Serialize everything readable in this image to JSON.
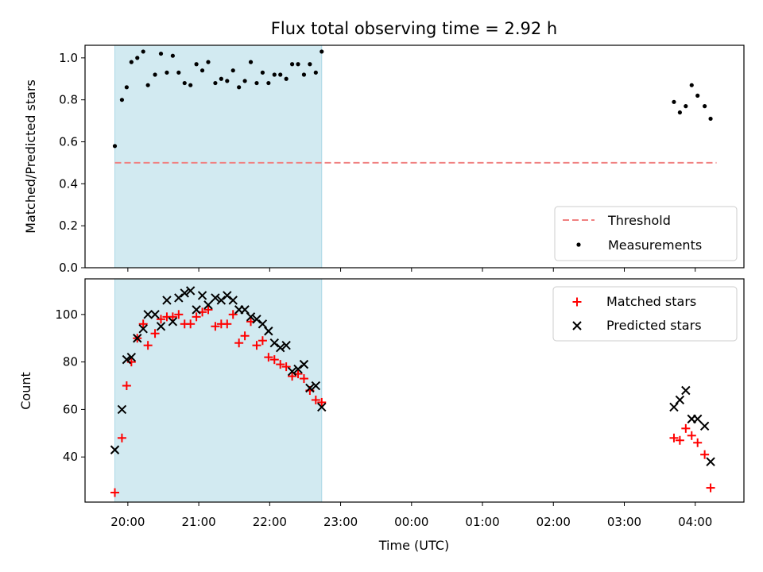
{
  "title": "Flux total observing time = 2.92 h",
  "colors": {
    "shade": "#add8e6",
    "threshold": "#f08080",
    "measurement": "#000000",
    "matched": "#ff0000",
    "predicted": "#000000"
  },
  "xaxis": {
    "label": "Time (UTC)",
    "ticks": [
      "19:00",
      "20:00",
      "21:00",
      "22:00",
      "23:00",
      "00:00",
      "01:00",
      "02:00",
      "03:00",
      "04:00"
    ],
    "tick_labels": [
      "20:00",
      "21:00",
      "22:00",
      "23:00",
      "00:00",
      "01:00",
      "02:00",
      "03:00",
      "04:00"
    ]
  },
  "chart_data": [
    {
      "type": "scatter",
      "ylabel": "Matched/Predicted stars",
      "ylim": [
        0,
        1.06
      ],
      "yticks": [
        0.0,
        0.2,
        0.4,
        0.6,
        0.8,
        1.0
      ],
      "ytick_labels": [
        "0.0",
        "0.2",
        "0.4",
        "0.6",
        "0.8",
        "1.0"
      ],
      "shaded_span": [
        "19:49",
        "22:44"
      ],
      "threshold": {
        "name": "Threshold",
        "value": 0.5,
        "from": "19:49",
        "to": "04:18"
      },
      "legend": {
        "position": "bottom-right",
        "entries": [
          "Threshold",
          "Measurements"
        ]
      },
      "series": [
        {
          "name": "Measurements",
          "points": [
            [
              "19:49",
              0.58
            ],
            [
              "19:55",
              0.8
            ],
            [
              "19:59",
              0.86
            ],
            [
              "20:03",
              0.98
            ],
            [
              "20:08",
              1.0
            ],
            [
              "20:13",
              1.03
            ],
            [
              "20:17",
              0.87
            ],
            [
              "20:23",
              0.92
            ],
            [
              "20:28",
              1.02
            ],
            [
              "20:33",
              0.93
            ],
            [
              "20:38",
              1.01
            ],
            [
              "20:43",
              0.93
            ],
            [
              "20:48",
              0.88
            ],
            [
              "20:53",
              0.87
            ],
            [
              "20:58",
              0.97
            ],
            [
              "21:03",
              0.94
            ],
            [
              "21:08",
              0.98
            ],
            [
              "21:14",
              0.88
            ],
            [
              "21:19",
              0.9
            ],
            [
              "21:24",
              0.89
            ],
            [
              "21:29",
              0.94
            ],
            [
              "21:34",
              0.86
            ],
            [
              "21:39",
              0.89
            ],
            [
              "21:44",
              0.98
            ],
            [
              "21:49",
              0.88
            ],
            [
              "21:54",
              0.93
            ],
            [
              "21:59",
              0.88
            ],
            [
              "22:04",
              0.92
            ],
            [
              "22:09",
              0.92
            ],
            [
              "22:14",
              0.9
            ],
            [
              "22:19",
              0.97
            ],
            [
              "22:24",
              0.97
            ],
            [
              "22:29",
              0.92
            ],
            [
              "22:34",
              0.97
            ],
            [
              "22:39",
              0.93
            ],
            [
              "22:44",
              1.03
            ],
            [
              "03:42",
              0.79
            ],
            [
              "03:47",
              0.74
            ],
            [
              "03:52",
              0.77
            ],
            [
              "03:57",
              0.87
            ],
            [
              "04:02",
              0.82
            ],
            [
              "04:08",
              0.77
            ],
            [
              "04:13",
              0.71
            ]
          ]
        }
      ]
    },
    {
      "type": "scatter",
      "xlabel": "Time (UTC)",
      "ylabel": "Count",
      "ylim": [
        21,
        115
      ],
      "yticks": [
        40,
        60,
        80,
        100
      ],
      "ytick_labels": [
        "40",
        "60",
        "80",
        "100"
      ],
      "shaded_span": [
        "19:49",
        "22:44"
      ],
      "legend": {
        "position": "top-right",
        "entries": [
          "Matched stars",
          "Predicted stars"
        ]
      },
      "series": [
        {
          "name": "Matched stars",
          "marker": "+",
          "points": [
            [
              "19:49",
              25
            ],
            [
              "19:55",
              48
            ],
            [
              "19:59",
              70
            ],
            [
              "20:03",
              80
            ],
            [
              "20:08",
              90
            ],
            [
              "20:13",
              96
            ],
            [
              "20:17",
              87
            ],
            [
              "20:23",
              92
            ],
            [
              "20:28",
              98
            ],
            [
              "20:33",
              99
            ],
            [
              "20:38",
              99
            ],
            [
              "20:43",
              100
            ],
            [
              "20:48",
              96
            ],
            [
              "20:53",
              96
            ],
            [
              "20:58",
              99
            ],
            [
              "21:03",
              101
            ],
            [
              "21:08",
              102
            ],
            [
              "21:14",
              95
            ],
            [
              "21:19",
              96
            ],
            [
              "21:24",
              96
            ],
            [
              "21:29",
              100
            ],
            [
              "21:34",
              88
            ],
            [
              "21:39",
              91
            ],
            [
              "21:44",
              97
            ],
            [
              "21:49",
              87
            ],
            [
              "21:54",
              89
            ],
            [
              "21:59",
              82
            ],
            [
              "22:04",
              81
            ],
            [
              "22:09",
              79
            ],
            [
              "22:14",
              78
            ],
            [
              "22:19",
              74
            ],
            [
              "22:24",
              75
            ],
            [
              "22:29",
              73
            ],
            [
              "22:34",
              68
            ],
            [
              "22:39",
              64
            ],
            [
              "22:44",
              63
            ],
            [
              "03:42",
              48
            ],
            [
              "03:47",
              47
            ],
            [
              "03:52",
              52
            ],
            [
              "03:57",
              49
            ],
            [
              "04:02",
              46
            ],
            [
              "04:08",
              41
            ],
            [
              "04:13",
              27
            ]
          ]
        },
        {
          "name": "Predicted stars",
          "marker": "x",
          "points": [
            [
              "19:49",
              43
            ],
            [
              "19:55",
              60
            ],
            [
              "19:59",
              81
            ],
            [
              "20:03",
              82
            ],
            [
              "20:08",
              90
            ],
            [
              "20:13",
              94
            ],
            [
              "20:17",
              100
            ],
            [
              "20:23",
              100
            ],
            [
              "20:28",
              95
            ],
            [
              "20:33",
              106
            ],
            [
              "20:38",
              97
            ],
            [
              "20:43",
              107
            ],
            [
              "20:48",
              109
            ],
            [
              "20:53",
              110
            ],
            [
              "20:58",
              102
            ],
            [
              "21:03",
              108
            ],
            [
              "21:08",
              104
            ],
            [
              "21:14",
              107
            ],
            [
              "21:19",
              106
            ],
            [
              "21:24",
              108
            ],
            [
              "21:29",
              106
            ],
            [
              "21:34",
              102
            ],
            [
              "21:39",
              102
            ],
            [
              "21:44",
              99
            ],
            [
              "21:49",
              98
            ],
            [
              "21:54",
              96
            ],
            [
              "21:59",
              93
            ],
            [
              "22:04",
              88
            ],
            [
              "22:09",
              86
            ],
            [
              "22:14",
              87
            ],
            [
              "22:19",
              76
            ],
            [
              "22:24",
              77
            ],
            [
              "22:29",
              79
            ],
            [
              "22:34",
              69
            ],
            [
              "22:39",
              70
            ],
            [
              "22:44",
              61
            ],
            [
              "03:42",
              61
            ],
            [
              "03:47",
              64
            ],
            [
              "03:52",
              68
            ],
            [
              "03:57",
              56
            ],
            [
              "04:02",
              56
            ],
            [
              "04:08",
              53
            ],
            [
              "04:13",
              38
            ]
          ]
        }
      ]
    }
  ]
}
